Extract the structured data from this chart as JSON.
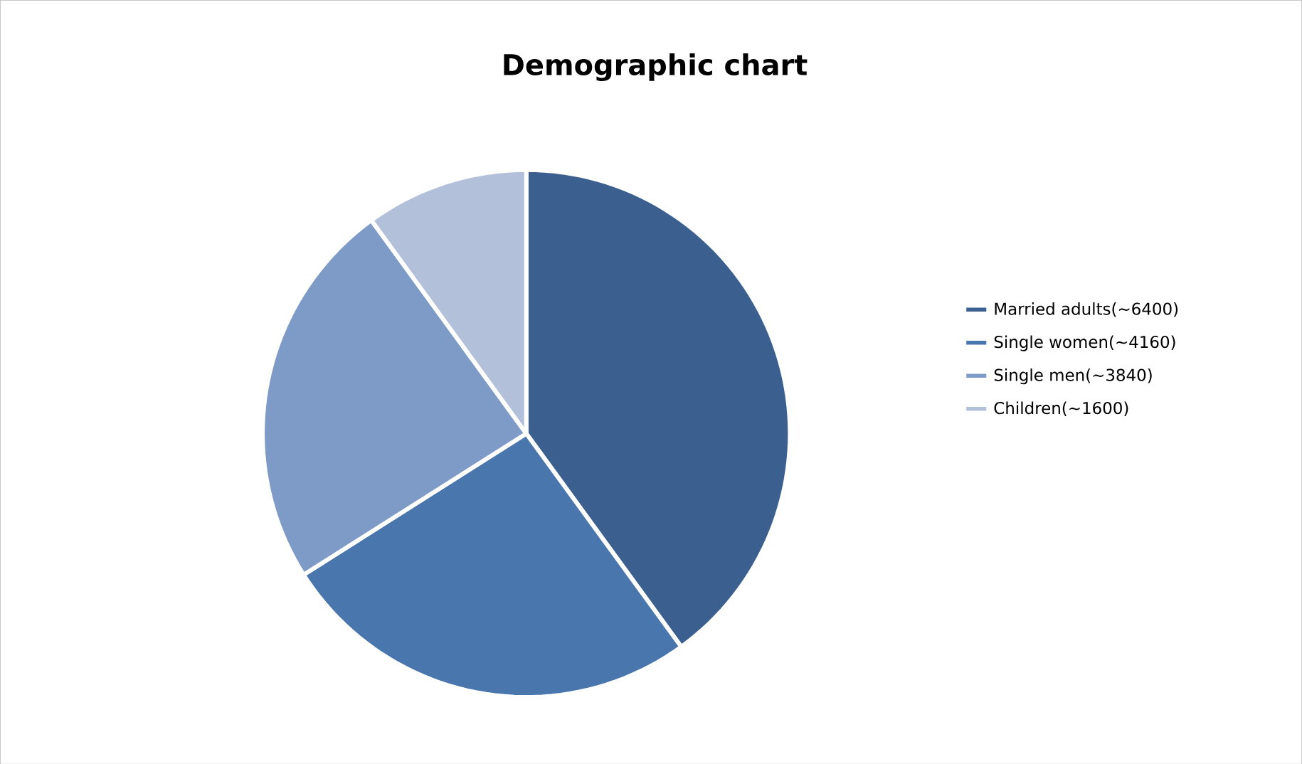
{
  "chart_data": {
    "type": "pie",
    "title": "Demographic chart",
    "categories": [
      "Married adults(~6400)",
      "Single women(~4160)",
      "Single men(~3840)",
      "Children(~1600)"
    ],
    "values": [
      6400,
      4160,
      3840,
      1600
    ],
    "colors": [
      "#3b6090",
      "#4a76ae",
      "#7e9bc8",
      "#b3c0da"
    ],
    "legend": "right"
  }
}
